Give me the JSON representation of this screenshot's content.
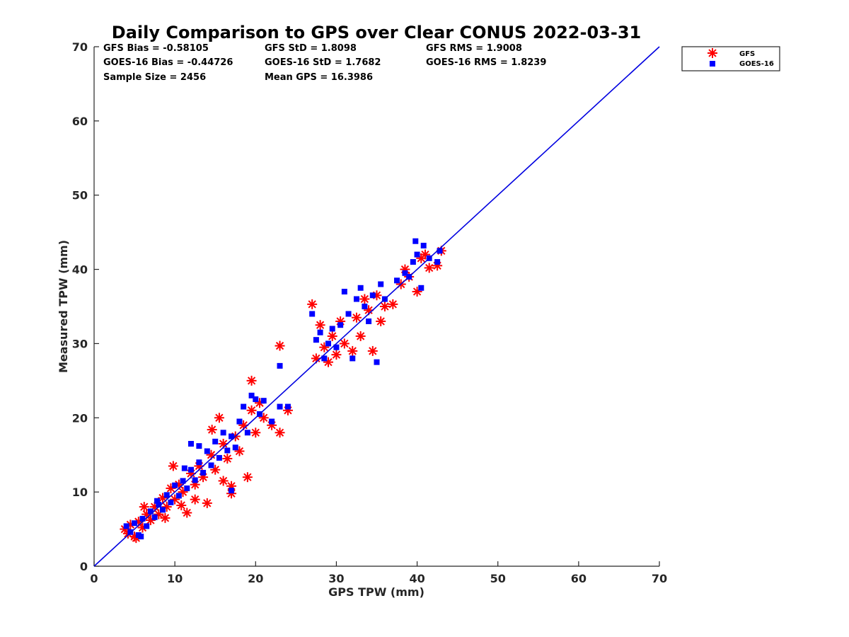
{
  "chart_data": {
    "type": "scatter",
    "title": "Daily Comparison to GPS over Clear CONUS 2022-03-31",
    "xlabel": "GPS TPW (mm)",
    "ylabel": "Measured TPW (mm)",
    "xlim": [
      0,
      70
    ],
    "ylim": [
      0,
      70
    ],
    "xticks": [
      0,
      10,
      20,
      30,
      40,
      50,
      60,
      70
    ],
    "yticks": [
      0,
      10,
      20,
      30,
      40,
      50,
      60,
      70
    ],
    "grid": false,
    "legend_position": "outside-top-right",
    "stats": {
      "col1": [
        "GFS Bias = -0.58105",
        "GOES-16 Bias = -0.44726",
        "Sample Size = 2456"
      ],
      "col2": [
        "GFS StD = 1.8098",
        "GOES-16 StD = 1.7682",
        "Mean GPS = 16.3986"
      ],
      "col3": [
        "GFS RMS = 1.9008",
        "GOES-16 RMS = 1.8239"
      ]
    },
    "reference_line": {
      "name": "1:1",
      "x": [
        0,
        70
      ],
      "y": [
        0,
        70
      ],
      "color": "#0000e0"
    },
    "series": [
      {
        "name": "GFS",
        "marker": "asterisk",
        "color": "#ff0000",
        "points": [
          [
            3.8,
            5.0
          ],
          [
            4.2,
            4.4
          ],
          [
            4.5,
            5.6
          ],
          [
            5.0,
            4.0
          ],
          [
            5.5,
            6.0
          ],
          [
            6.0,
            5.2
          ],
          [
            6.5,
            7.0
          ],
          [
            7.0,
            6.2
          ],
          [
            7.5,
            8.0
          ],
          [
            8.0,
            7.0
          ],
          [
            8.5,
            9.2
          ],
          [
            9.0,
            8.0
          ],
          [
            9.5,
            10.5
          ],
          [
            10.0,
            9.0
          ],
          [
            10.5,
            11.0
          ],
          [
            11.0,
            10.0
          ],
          [
            11.5,
            7.2
          ],
          [
            12.0,
            12.5
          ],
          [
            12.5,
            11.0
          ],
          [
            13.0,
            13.5
          ],
          [
            13.5,
            12.0
          ],
          [
            14.0,
            8.5
          ],
          [
            14.5,
            15.0
          ],
          [
            14.6,
            18.4
          ],
          [
            15.0,
            13.0
          ],
          [
            15.5,
            20.0
          ],
          [
            16.0,
            16.5
          ],
          [
            16.5,
            14.5
          ],
          [
            17.0,
            9.8
          ],
          [
            17.0,
            10.8
          ],
          [
            17.5,
            17.5
          ],
          [
            18.0,
            15.5
          ],
          [
            18.5,
            19.0
          ],
          [
            19.0,
            12.0
          ],
          [
            19.5,
            25.0
          ],
          [
            19.5,
            21.0
          ],
          [
            20.0,
            18.0
          ],
          [
            20.5,
            22.0
          ],
          [
            21.0,
            20.0
          ],
          [
            22.0,
            19.0
          ],
          [
            23.0,
            18.0
          ],
          [
            24.0,
            21.0
          ],
          [
            9.8,
            13.5
          ],
          [
            12.5,
            9.0
          ],
          [
            16.0,
            11.5
          ],
          [
            23.0,
            29.7
          ],
          [
            27.0,
            35.3
          ],
          [
            27.5,
            28.0
          ],
          [
            28.0,
            32.5
          ],
          [
            28.5,
            29.5
          ],
          [
            29.0,
            27.5
          ],
          [
            29.5,
            31.0
          ],
          [
            30.0,
            28.5
          ],
          [
            30.5,
            33.0
          ],
          [
            31.0,
            30.0
          ],
          [
            32.0,
            29.0
          ],
          [
            32.5,
            33.5
          ],
          [
            33.0,
            31.0
          ],
          [
            33.5,
            36.0
          ],
          [
            34.0,
            34.5
          ],
          [
            34.5,
            29.0
          ],
          [
            35.0,
            36.5
          ],
          [
            35.5,
            33.0
          ],
          [
            36.0,
            35.0
          ],
          [
            37.0,
            35.3
          ],
          [
            38.0,
            38.0
          ],
          [
            38.5,
            40.0
          ],
          [
            39.0,
            39.0
          ],
          [
            40.0,
            37.0
          ],
          [
            40.5,
            41.5
          ],
          [
            41.0,
            42.0
          ],
          [
            41.5,
            40.2
          ],
          [
            42.5,
            40.5
          ],
          [
            43.0,
            42.5
          ],
          [
            6.2,
            8.0
          ],
          [
            5.2,
            3.8
          ],
          [
            8.8,
            6.5
          ],
          [
            10.8,
            8.2
          ]
        ]
      },
      {
        "name": "GOES-16",
        "marker": "square",
        "color": "#0000ff",
        "points": [
          [
            4.0,
            5.4
          ],
          [
            4.5,
            4.6
          ],
          [
            5.0,
            5.8
          ],
          [
            5.5,
            4.2
          ],
          [
            6.0,
            6.4
          ],
          [
            6.5,
            5.4
          ],
          [
            7.0,
            7.4
          ],
          [
            7.5,
            6.6
          ],
          [
            8.0,
            8.3
          ],
          [
            8.5,
            7.6
          ],
          [
            9.0,
            9.6
          ],
          [
            9.5,
            8.6
          ],
          [
            10.0,
            10.9
          ],
          [
            10.5,
            9.5
          ],
          [
            11.0,
            11.5
          ],
          [
            11.5,
            10.5
          ],
          [
            12.0,
            13.0
          ],
          [
            12.0,
            16.5
          ],
          [
            12.5,
            11.6
          ],
          [
            13.0,
            14.0
          ],
          [
            13.0,
            16.2
          ],
          [
            13.5,
            12.6
          ],
          [
            14.0,
            15.5
          ],
          [
            14.5,
            13.6
          ],
          [
            15.0,
            16.8
          ],
          [
            15.5,
            14.6
          ],
          [
            16.0,
            18.0
          ],
          [
            16.5,
            15.6
          ],
          [
            17.0,
            10.2
          ],
          [
            17.0,
            17.5
          ],
          [
            17.5,
            16.0
          ],
          [
            18.0,
            19.5
          ],
          [
            18.5,
            21.5
          ],
          [
            19.0,
            18.0
          ],
          [
            19.5,
            23.0
          ],
          [
            20.0,
            22.5
          ],
          [
            20.5,
            20.5
          ],
          [
            21.0,
            22.3
          ],
          [
            22.0,
            19.5
          ],
          [
            23.0,
            21.5
          ],
          [
            23.0,
            27.0
          ],
          [
            24.0,
            21.5
          ],
          [
            27.0,
            34.0
          ],
          [
            27.5,
            30.5
          ],
          [
            28.0,
            31.5
          ],
          [
            28.5,
            28.0
          ],
          [
            29.0,
            30.0
          ],
          [
            29.5,
            32.0
          ],
          [
            30.0,
            29.5
          ],
          [
            30.5,
            32.5
          ],
          [
            31.0,
            37.0
          ],
          [
            31.5,
            34.0
          ],
          [
            32.0,
            28.0
          ],
          [
            32.5,
            36.0
          ],
          [
            33.0,
            37.5
          ],
          [
            33.5,
            35.0
          ],
          [
            34.0,
            33.0
          ],
          [
            34.5,
            36.5
          ],
          [
            35.0,
            27.5
          ],
          [
            35.5,
            38.0
          ],
          [
            36.0,
            36.0
          ],
          [
            37.5,
            38.5
          ],
          [
            38.5,
            39.5
          ],
          [
            39.0,
            39.0
          ],
          [
            39.5,
            41.0
          ],
          [
            39.8,
            43.8
          ],
          [
            40.0,
            42.0
          ],
          [
            40.5,
            37.5
          ],
          [
            40.8,
            43.2
          ],
          [
            41.5,
            41.5
          ],
          [
            42.5,
            41.0
          ],
          [
            42.8,
            42.5
          ],
          [
            5.8,
            4.0
          ],
          [
            7.8,
            8.8
          ],
          [
            11.2,
            13.2
          ]
        ]
      }
    ]
  }
}
